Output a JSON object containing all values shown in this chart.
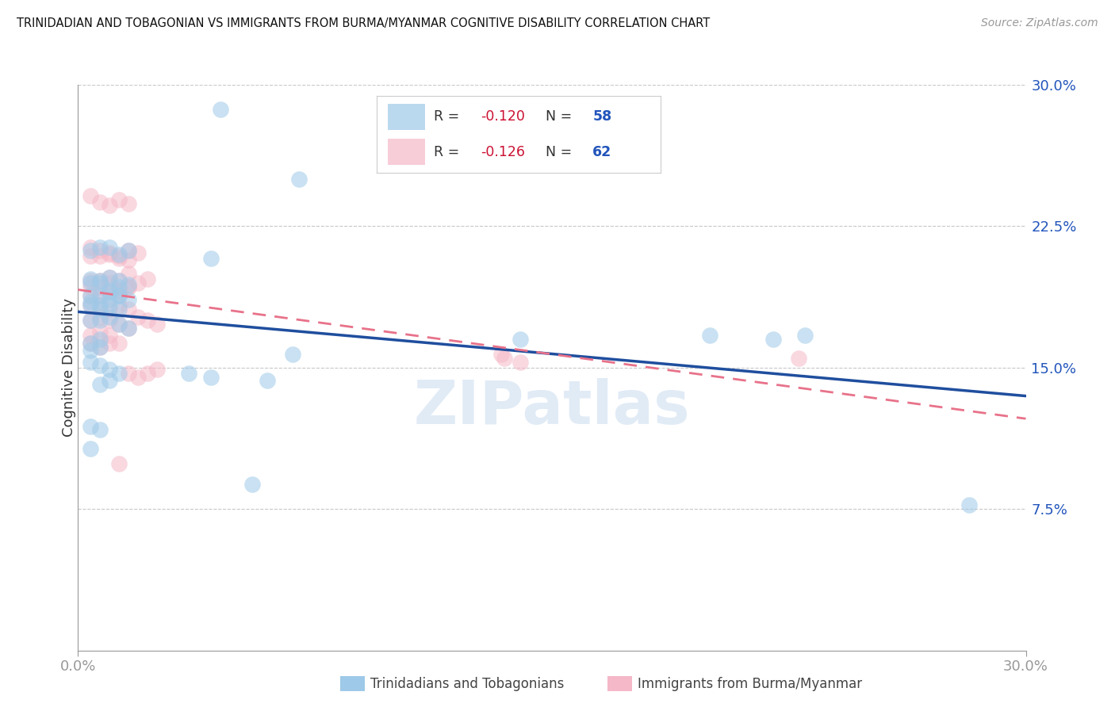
{
  "title": "TRINIDADIAN AND TOBAGONIAN VS IMMIGRANTS FROM BURMA/MYANMAR COGNITIVE DISABILITY CORRELATION CHART",
  "source": "Source: ZipAtlas.com",
  "ylabel": "Cognitive Disability",
  "x_min": 0.0,
  "x_max": 0.3,
  "y_min": 0.0,
  "y_max": 0.3,
  "y_ticks": [
    0.075,
    0.15,
    0.225,
    0.3
  ],
  "y_tick_labels": [
    "7.5%",
    "15.0%",
    "22.5%",
    "30.0%"
  ],
  "watermark": "ZIPatlas",
  "blue_color": "#9ec9e8",
  "pink_color": "#f5b8c8",
  "line_blue": "#1f4e9e",
  "line_pink": "#e8728a",
  "blue_scatter_x": [
    0.045,
    0.004,
    0.007,
    0.01,
    0.013,
    0.016,
    0.004,
    0.007,
    0.01,
    0.013,
    0.004,
    0.007,
    0.01,
    0.013,
    0.016,
    0.004,
    0.007,
    0.01,
    0.013,
    0.004,
    0.007,
    0.01,
    0.013,
    0.016,
    0.004,
    0.007,
    0.01,
    0.013,
    0.004,
    0.007,
    0.01,
    0.013,
    0.016,
    0.004,
    0.007,
    0.07,
    0.004,
    0.007,
    0.068,
    0.14,
    0.004,
    0.007,
    0.01,
    0.013,
    0.035,
    0.042,
    0.004,
    0.007,
    0.055,
    0.2,
    0.282,
    0.004,
    0.007,
    0.01,
    0.042,
    0.06,
    0.22,
    0.23
  ],
  "blue_scatter_y": [
    0.287,
    0.195,
    0.195,
    0.191,
    0.193,
    0.194,
    0.188,
    0.188,
    0.19,
    0.188,
    0.185,
    0.183,
    0.186,
    0.188,
    0.186,
    0.197,
    0.196,
    0.198,
    0.196,
    0.212,
    0.214,
    0.214,
    0.21,
    0.212,
    0.183,
    0.181,
    0.183,
    0.181,
    0.175,
    0.175,
    0.177,
    0.173,
    0.171,
    0.163,
    0.165,
    0.25,
    0.159,
    0.161,
    0.157,
    0.165,
    0.153,
    0.151,
    0.149,
    0.147,
    0.147,
    0.208,
    0.119,
    0.117,
    0.088,
    0.167,
    0.077,
    0.107,
    0.141,
    0.143,
    0.145,
    0.143,
    0.165,
    0.167
  ],
  "pink_scatter_x": [
    0.004,
    0.007,
    0.01,
    0.013,
    0.016,
    0.004,
    0.007,
    0.01,
    0.013,
    0.016,
    0.004,
    0.007,
    0.01,
    0.013,
    0.016,
    0.004,
    0.007,
    0.01,
    0.013,
    0.016,
    0.004,
    0.007,
    0.01,
    0.013,
    0.016,
    0.004,
    0.007,
    0.01,
    0.013,
    0.016,
    0.019,
    0.004,
    0.007,
    0.01,
    0.013,
    0.016,
    0.019,
    0.022,
    0.004,
    0.007,
    0.01,
    0.013,
    0.016,
    0.019,
    0.022,
    0.025,
    0.004,
    0.007,
    0.01,
    0.013,
    0.016,
    0.019,
    0.022,
    0.025,
    0.004,
    0.007,
    0.01,
    0.013,
    0.134,
    0.135,
    0.228,
    0.14
  ],
  "pink_scatter_y": [
    0.188,
    0.188,
    0.19,
    0.191,
    0.193,
    0.214,
    0.212,
    0.21,
    0.208,
    0.212,
    0.196,
    0.196,
    0.198,
    0.196,
    0.2,
    0.241,
    0.238,
    0.236,
    0.239,
    0.237,
    0.183,
    0.183,
    0.181,
    0.183,
    0.181,
    0.209,
    0.209,
    0.211,
    0.209,
    0.207,
    0.211,
    0.193,
    0.193,
    0.195,
    0.191,
    0.193,
    0.195,
    0.197,
    0.175,
    0.177,
    0.175,
    0.173,
    0.171,
    0.177,
    0.175,
    0.173,
    0.163,
    0.161,
    0.163,
    0.163,
    0.147,
    0.145,
    0.147,
    0.149,
    0.167,
    0.169,
    0.167,
    0.099,
    0.157,
    0.155,
    0.155,
    0.153
  ]
}
